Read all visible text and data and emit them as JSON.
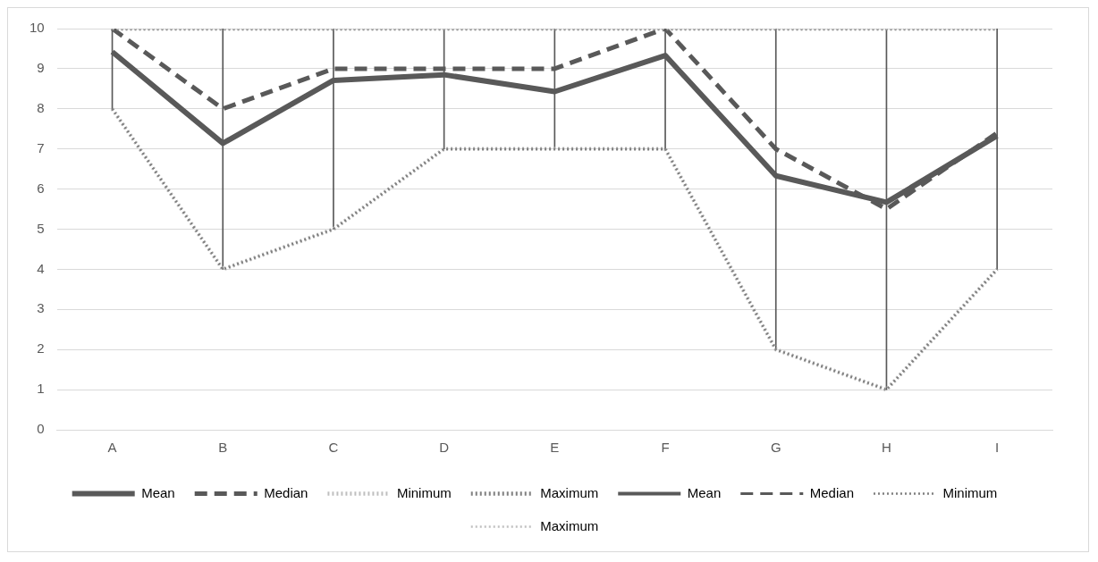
{
  "chart_data": {
    "type": "line",
    "categories": [
      "A",
      "B",
      "C",
      "D",
      "E",
      "F",
      "G",
      "H",
      "I"
    ],
    "series": [
      {
        "type": "bar",
        "color": "#595959",
        "base": [
          8,
          4,
          5,
          7,
          7,
          7,
          2,
          1,
          4
        ],
        "values": [
          2,
          6,
          5,
          3,
          3,
          3,
          8,
          9,
          6
        ]
      },
      {
        "name": "Mean",
        "color": "#595959",
        "line_style": "solid",
        "values": [
          9.42,
          7.14,
          8.71,
          8.85,
          8.43,
          9.33,
          6.33,
          5.67,
          7.33
        ]
      },
      {
        "name": "Median",
        "color": "#595959",
        "line_style": "dashed",
        "values": [
          10,
          8,
          9,
          9,
          9,
          10,
          7,
          5.5,
          7.4
        ]
      },
      {
        "name": "Minimum",
        "color": "#bfbfbf",
        "line_style": "dotted",
        "values": [
          8,
          4,
          5,
          7,
          7,
          7,
          2,
          1,
          4
        ]
      },
      {
        "name": "Maximum",
        "color": "#7f7f7f",
        "line_style": "dotted",
        "values": [
          10,
          10,
          10,
          10,
          10,
          10,
          10,
          10,
          10
        ]
      },
      {
        "name": "Mean",
        "color": "#595959",
        "line_style": "solid",
        "values": [
          null,
          null,
          null,
          null,
          null,
          null,
          null,
          null,
          null
        ]
      },
      {
        "name": "Median",
        "color": "#595959",
        "line_style": "dashed",
        "values": [
          null,
          null,
          null,
          null,
          null,
          null,
          null,
          null,
          null
        ]
      },
      {
        "name": "Minimum",
        "color": "#7f7f7f",
        "line_style": "dotted",
        "values": [
          8,
          4,
          5,
          7,
          7,
          7,
          2,
          1,
          4
        ]
      },
      {
        "name": "Maximum",
        "color": "#bfbfbf",
        "line_style": "dotted",
        "values": [
          10,
          10,
          10,
          10,
          10,
          10,
          10,
          10,
          10
        ]
      }
    ],
    "ylim": [
      0,
      10
    ],
    "yticks": [
      0,
      1,
      2,
      3,
      4,
      5,
      6,
      7,
      8,
      9,
      10
    ],
    "grid": "y",
    "legend": "bottom",
    "marker": "none"
  }
}
